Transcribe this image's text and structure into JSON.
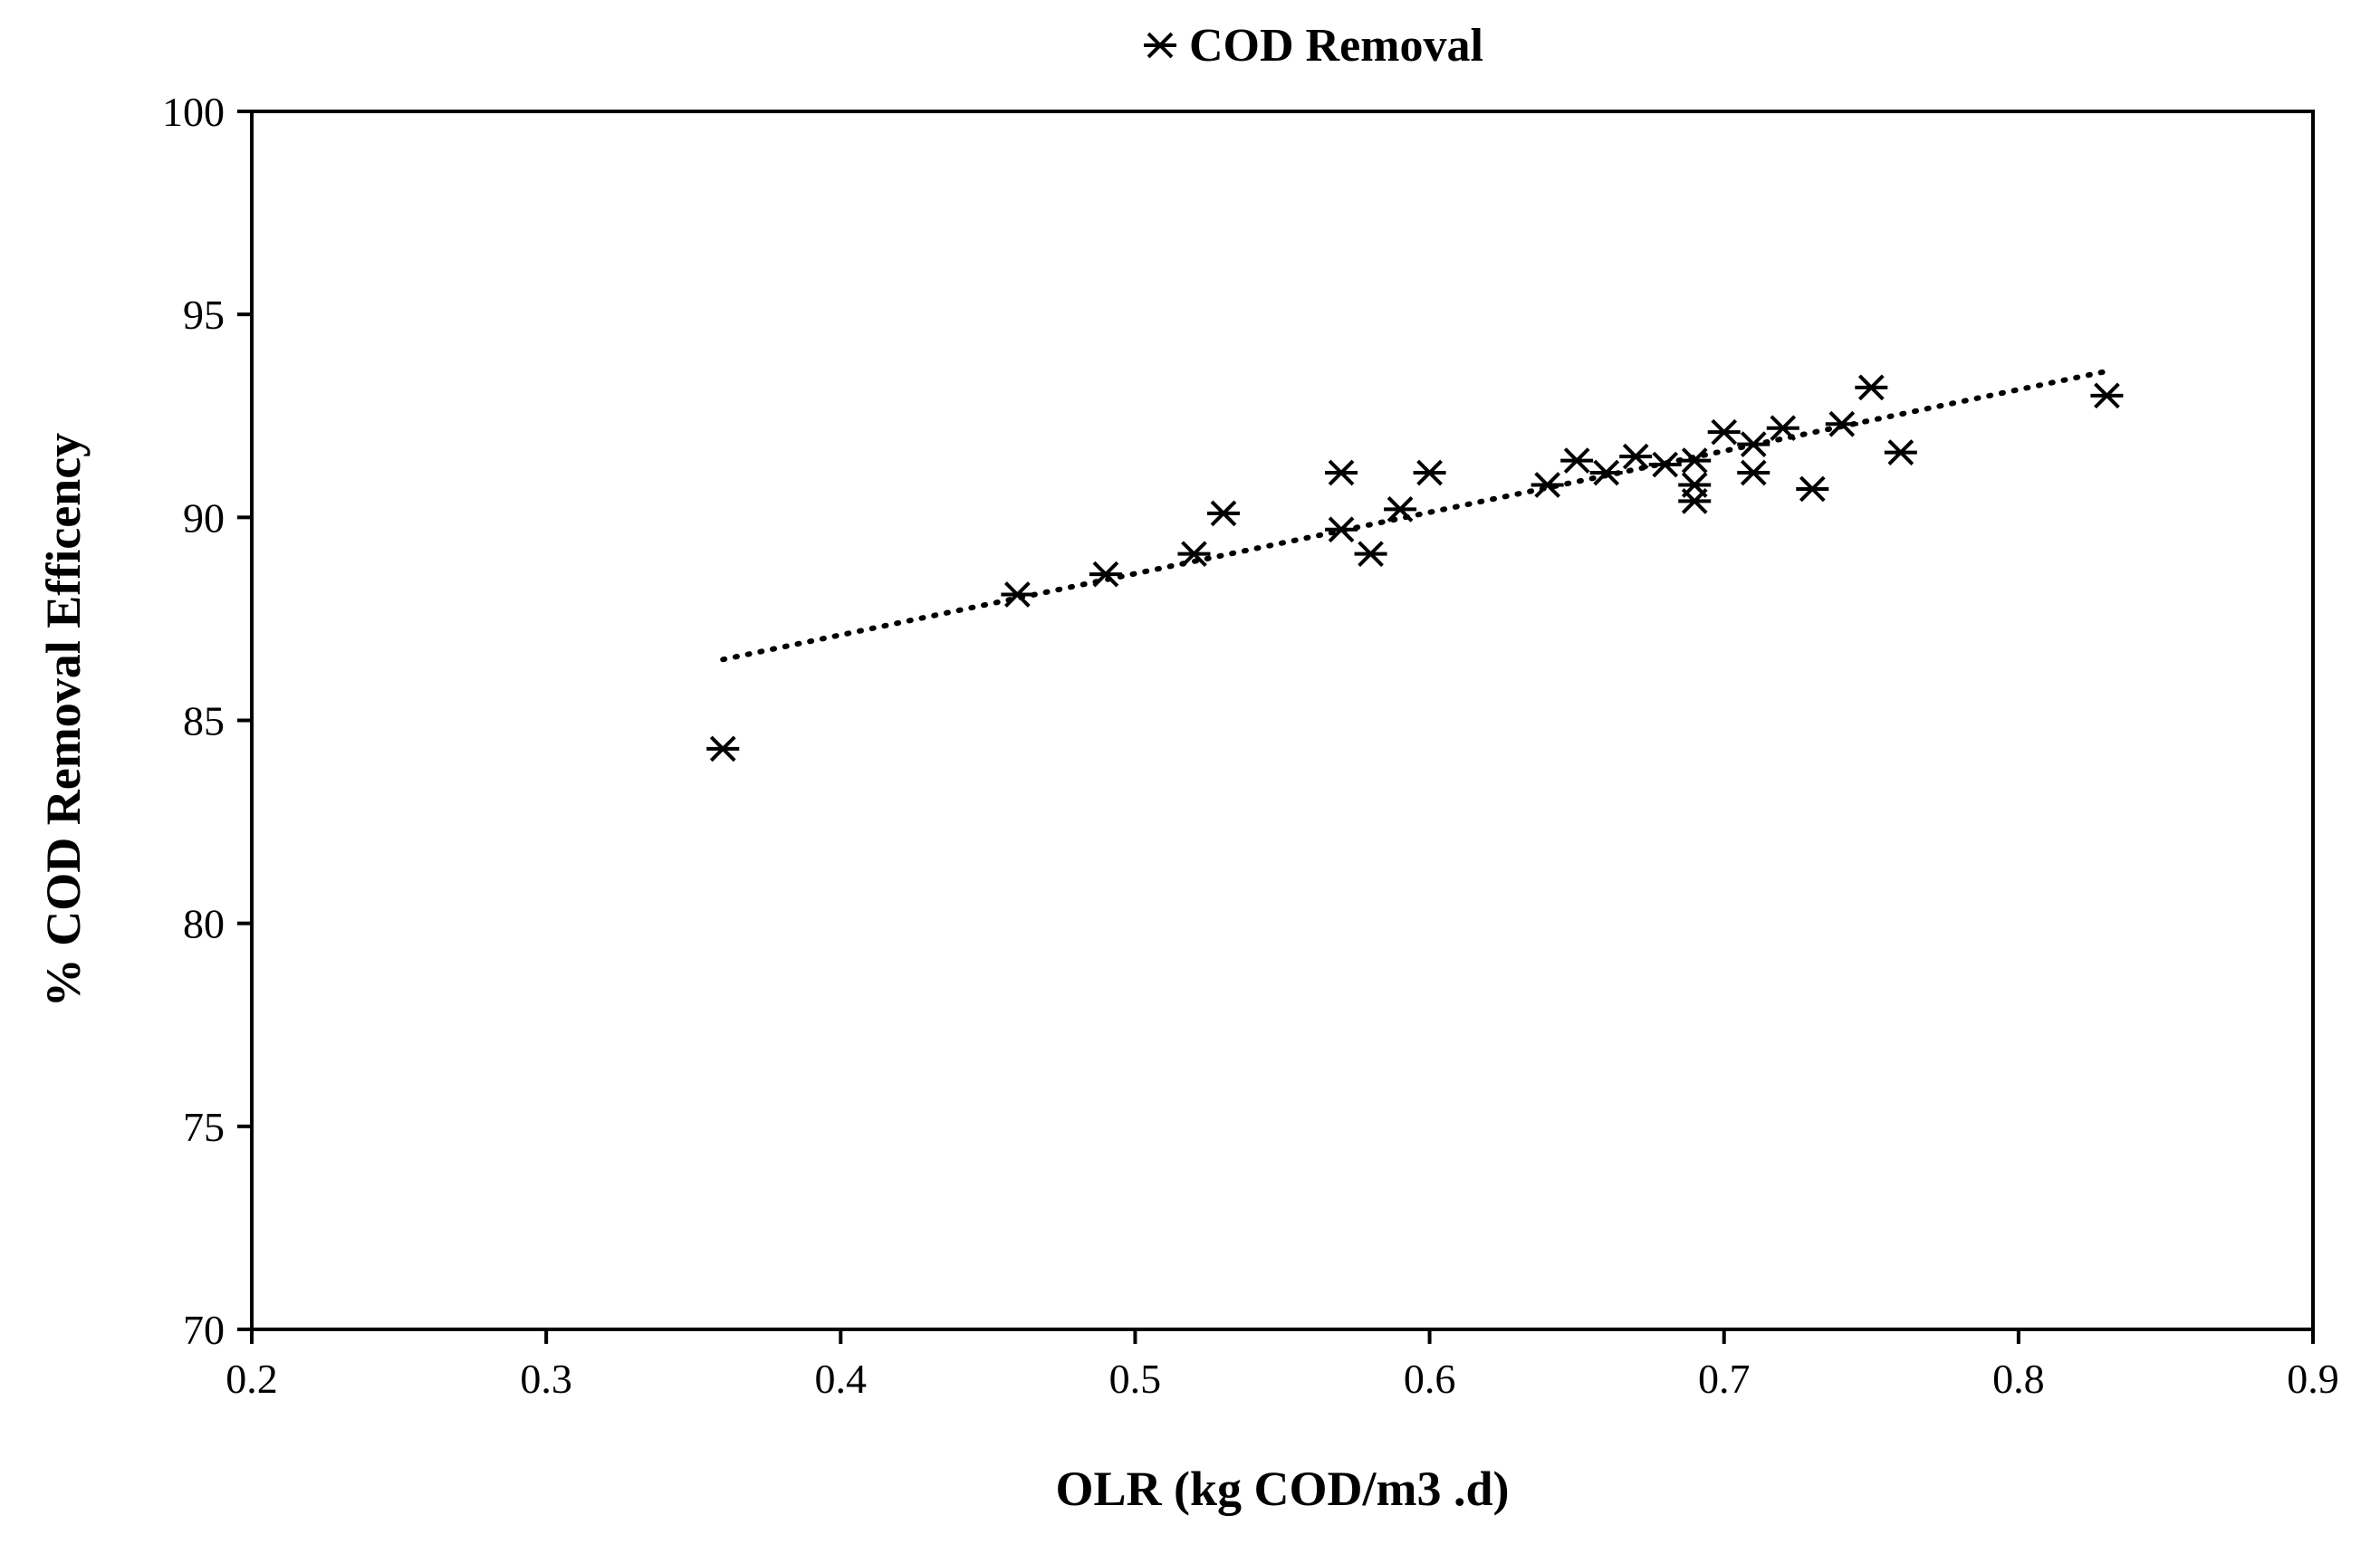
{
  "chart_data": {
    "type": "scatter",
    "title": "",
    "xlabel": "OLR (kg COD/m3 .d)",
    "ylabel": "% COD Removal Efficency",
    "xlim": [
      0.2,
      0.9
    ],
    "ylim": [
      70,
      100
    ],
    "x_ticks": [
      0.2,
      0.3,
      0.4,
      0.5,
      0.6,
      0.7,
      0.8,
      0.9
    ],
    "x_tick_labels": [
      "0.2",
      "0.3",
      "0.4",
      "0.5",
      "0.6",
      "0.7",
      "0.8",
      "0.9"
    ],
    "y_ticks": [
      70,
      75,
      80,
      85,
      90,
      95,
      100
    ],
    "y_tick_labels": [
      "70",
      "75",
      "80",
      "85",
      "90",
      "95",
      "100"
    ],
    "grid": false,
    "legend": {
      "position": "top-center",
      "entries": [
        "COD Removal"
      ]
    },
    "series": [
      {
        "name": "COD Removal",
        "marker": "asterisk",
        "color": "#000000",
        "points": [
          [
            0.36,
            84.3
          ],
          [
            0.46,
            88.1
          ],
          [
            0.49,
            88.6
          ],
          [
            0.52,
            89.1
          ],
          [
            0.53,
            90.1
          ],
          [
            0.57,
            91.1
          ],
          [
            0.57,
            89.7
          ],
          [
            0.58,
            89.1
          ],
          [
            0.59,
            90.2
          ],
          [
            0.6,
            91.1
          ],
          [
            0.64,
            90.8
          ],
          [
            0.65,
            91.4
          ],
          [
            0.66,
            91.1
          ],
          [
            0.67,
            91.5
          ],
          [
            0.68,
            91.3
          ],
          [
            0.69,
            91.4
          ],
          [
            0.69,
            90.8
          ],
          [
            0.69,
            90.4
          ],
          [
            0.7,
            92.1
          ],
          [
            0.71,
            91.8
          ],
          [
            0.71,
            91.1
          ],
          [
            0.72,
            92.2
          ],
          [
            0.73,
            90.7
          ],
          [
            0.74,
            92.3
          ],
          [
            0.75,
            93.2
          ],
          [
            0.76,
            91.6
          ],
          [
            0.83,
            93.0
          ]
        ]
      }
    ],
    "trendline": {
      "type": "linear",
      "style": "dotted",
      "x_start": 0.36,
      "y_start": 86.5,
      "x_end": 0.83,
      "y_end": 93.6
    }
  }
}
